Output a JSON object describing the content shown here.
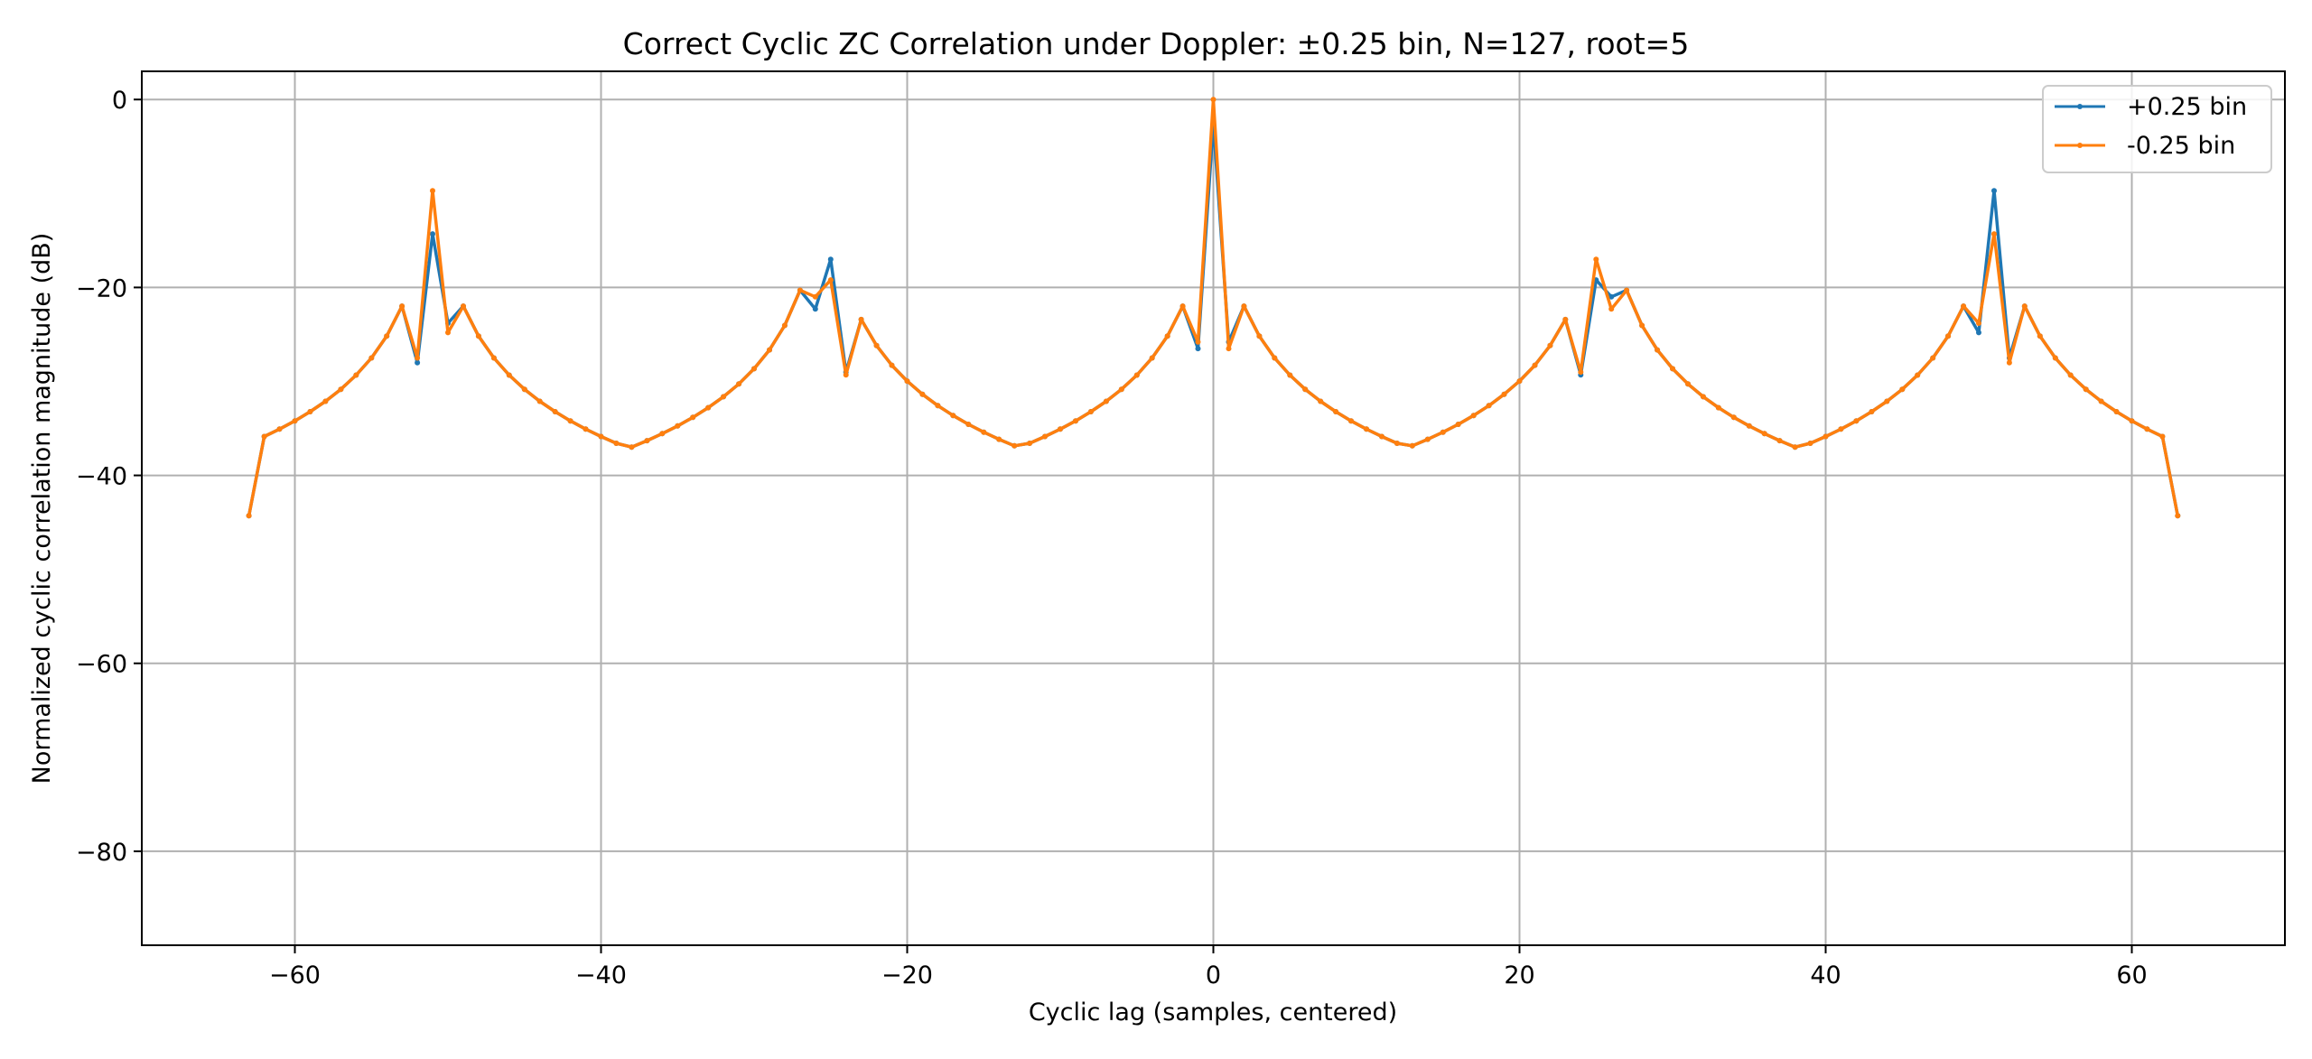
{
  "chart_data": {
    "type": "line",
    "title": "Correct Cyclic ZC Correlation under Doppler: ±0.25 bin, N=127, root=5",
    "xlabel": "Cyclic lag (samples, centered)",
    "ylabel": "Normalized cyclic correlation magnitude (dB)",
    "xlim": [
      -70,
      70
    ],
    "ylim": [
      -90,
      3
    ],
    "xticks": [
      -60,
      -40,
      -20,
      0,
      20,
      40,
      60
    ],
    "yticks": [
      0,
      -20,
      -40,
      -60,
      -80
    ],
    "xtick_labels": [
      "−60",
      "−40",
      "−20",
      "0",
      "20",
      "40",
      "60"
    ],
    "ytick_labels": [
      "0",
      "−20",
      "−40",
      "−60",
      "−80"
    ],
    "grid": true,
    "legend_position": "top-right",
    "series_colors": [
      "#1f77b4",
      "#ff7f0e"
    ],
    "x_range": [
      -63,
      63
    ],
    "floor_db": -44.3,
    "series": [
      {
        "name": "+0.25 bin",
        "peaks": [
          {
            "x": -51,
            "y": -14.3,
            "left": -28.0,
            "right": -23.8
          },
          {
            "x": -25,
            "y": -17.0,
            "left": -22.3,
            "right": -29.0
          },
          {
            "x": 0,
            "y": -2.5,
            "left": -26.5,
            "right": -25.8
          },
          {
            "x": 25,
            "y": -19.2,
            "left": -29.3,
            "right": -21.0
          },
          {
            "x": 51,
            "y": -9.7,
            "left": -24.8,
            "right": -27.5
          }
        ]
      },
      {
        "name": "-0.25 bin",
        "peaks": [
          {
            "x": -51,
            "y": -9.7,
            "left": -27.5,
            "right": -24.8
          },
          {
            "x": -25,
            "y": -19.2,
            "left": -21.0,
            "right": -29.3
          },
          {
            "x": 0,
            "y": 0.0,
            "left": -25.8,
            "right": -26.5
          },
          {
            "x": 25,
            "y": -17.0,
            "left": -29.0,
            "right": -22.3
          },
          {
            "x": 51,
            "y": -14.3,
            "left": -23.8,
            "right": -28.0
          }
        ]
      }
    ]
  }
}
